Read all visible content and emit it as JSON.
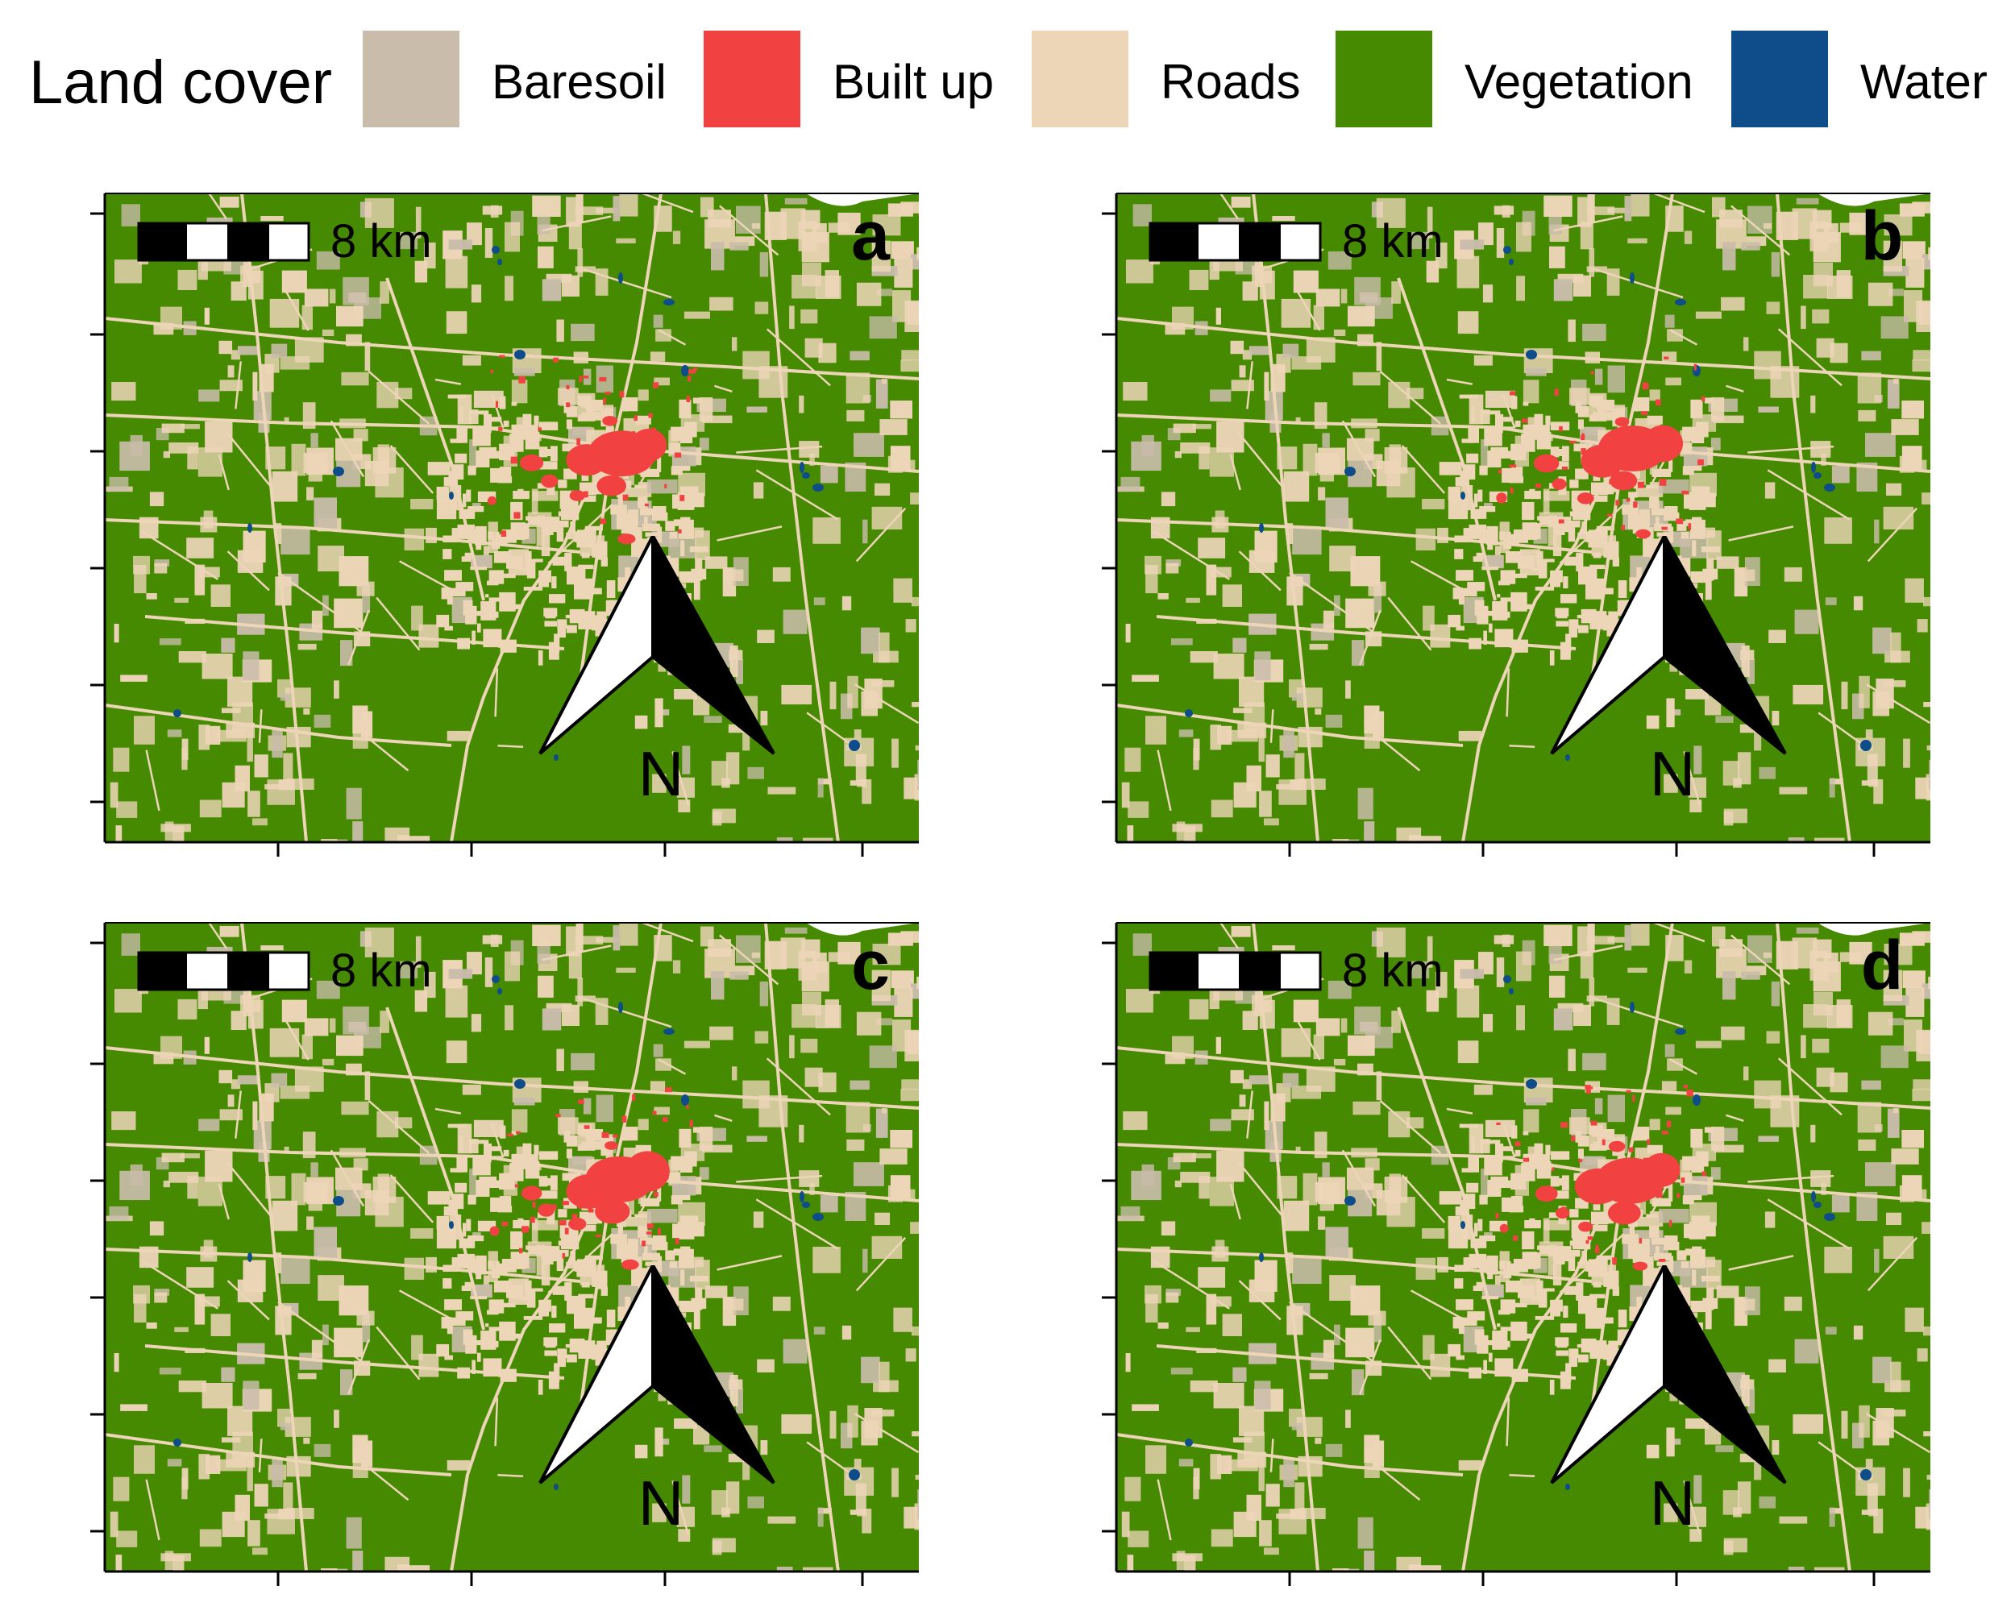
{
  "legend": {
    "title": "Land cover",
    "items": [
      {
        "label": "Baresoil",
        "color": "#c9bcaa"
      },
      {
        "label": "Built up",
        "color": "#f24141"
      },
      {
        "label": "Roads",
        "color": "#edd5b8"
      },
      {
        "label": "Vegetation",
        "color": "#458a00"
      },
      {
        "label": "Water",
        "color": "#0f4c8a"
      }
    ]
  },
  "panels": [
    {
      "letter": "a",
      "scale_label": "8 km",
      "north_label": "N"
    },
    {
      "letter": "b",
      "scale_label": "8 km",
      "north_label": "N"
    },
    {
      "letter": "c",
      "scale_label": "8 km",
      "north_label": "N"
    },
    {
      "letter": "d",
      "scale_label": "8 km",
      "north_label": "N"
    }
  ]
}
